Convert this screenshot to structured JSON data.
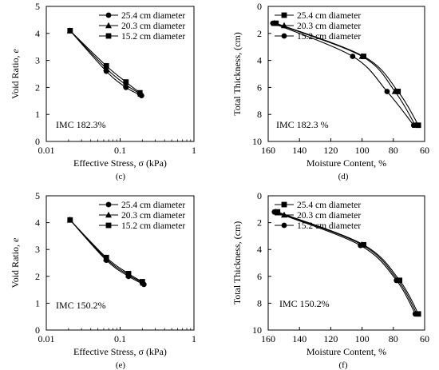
{
  "chart_data": [
    {
      "id": "c",
      "panel_label": "(c)",
      "type": "line",
      "xscale": "log",
      "xlim": [
        0.01,
        1
      ],
      "ylim": [
        0,
        5
      ],
      "xticks": [
        0.01,
        0.1,
        1
      ],
      "xtick_labels": [
        "0.01",
        "0.1",
        "1"
      ],
      "yticks": [
        0,
        1,
        2,
        3,
        4,
        5
      ],
      "ytick_labels": [
        "0",
        "1",
        "2",
        "3",
        "4",
        "5"
      ],
      "xlabel": "Effective Stress, σ (kPa)",
      "ylabel_main": "Void Ratio, ",
      "ylabel_italic": "e",
      "annotation": "IMC 182.3%",
      "annotation_position": "bottom-left",
      "legend_position": "top-right",
      "series": [
        {
          "name": "25.4 cm diameter",
          "marker": "circle",
          "x": [
            0.021,
            0.065,
            0.12,
            0.195
          ],
          "y": [
            4.1,
            2.6,
            2.0,
            1.7
          ]
        },
        {
          "name": "20.3 cm diameter",
          "marker": "triangle",
          "x": [
            0.021,
            0.065,
            0.12,
            0.19
          ],
          "y": [
            4.1,
            2.7,
            2.1,
            1.75
          ]
        },
        {
          "name": "15.2 cm diameter",
          "marker": "square",
          "x": [
            0.021,
            0.065,
            0.12,
            0.185
          ],
          "y": [
            4.1,
            2.8,
            2.2,
            1.8
          ]
        }
      ]
    },
    {
      "id": "d",
      "panel_label": "(d)",
      "type": "line",
      "xscale": "linear",
      "x_reversed": true,
      "y_reversed": true,
      "xlim": [
        160,
        60
      ],
      "ylim": [
        0,
        10
      ],
      "xticks": [
        160,
        140,
        120,
        100,
        80,
        60
      ],
      "xtick_labels": [
        "160",
        "140",
        "120",
        "100",
        "80",
        "60"
      ],
      "yticks": [
        0,
        2,
        4,
        6,
        8,
        10
      ],
      "ytick_labels": [
        "0",
        "2",
        "4",
        "6",
        "8",
        "10"
      ],
      "xlabel": "Moisture Content, %",
      "ylabel_main": "Total Thickness, (cm)",
      "ylabel_italic": "",
      "annotation": "IMC 182.3 %",
      "annotation_position": "bottom-left",
      "legend_position": "top-right",
      "series": [
        {
          "name": "25.4 cm diameter",
          "marker": "square",
          "x": [
            155,
            99,
            77,
            64
          ],
          "y": [
            1.25,
            3.7,
            6.3,
            8.8
          ]
        },
        {
          "name": "20.3 cm diameter",
          "marker": "triangle",
          "x": [
            156,
            100,
            79,
            66
          ],
          "y": [
            1.25,
            3.7,
            6.3,
            8.8
          ]
        },
        {
          "name": "15.2 cm diameter",
          "marker": "circle",
          "x": [
            157,
            106,
            84,
            67
          ],
          "y": [
            1.25,
            3.7,
            6.3,
            8.8
          ]
        }
      ]
    },
    {
      "id": "e",
      "panel_label": "(e)",
      "type": "line",
      "xscale": "log",
      "xlim": [
        0.01,
        1
      ],
      "ylim": [
        0,
        5
      ],
      "xticks": [
        0.01,
        0.1,
        1
      ],
      "xtick_labels": [
        "0.01",
        "0.1",
        "1"
      ],
      "yticks": [
        0,
        1,
        2,
        3,
        4,
        5
      ],
      "ytick_labels": [
        "0",
        "1",
        "2",
        "3",
        "4",
        "5"
      ],
      "xlabel": "Effective Stress, σ (kPa)",
      "ylabel_main": "Void Ratio, ",
      "ylabel_italic": "e",
      "annotation": "IMC 150.2%",
      "annotation_position": "bottom-left",
      "legend_position": "top-right",
      "series": [
        {
          "name": "25.4 cm diameter",
          "marker": "circle",
          "x": [
            0.021,
            0.065,
            0.13,
            0.21
          ],
          "y": [
            4.1,
            2.6,
            2.0,
            1.7
          ]
        },
        {
          "name": "20.3 cm diameter",
          "marker": "triangle",
          "x": [
            0.021,
            0.065,
            0.13,
            0.205
          ],
          "y": [
            4.1,
            2.65,
            2.05,
            1.75
          ]
        },
        {
          "name": "15.2 cm diameter",
          "marker": "square",
          "x": [
            0.021,
            0.065,
            0.13,
            0.2
          ],
          "y": [
            4.1,
            2.7,
            2.1,
            1.8
          ]
        }
      ]
    },
    {
      "id": "f",
      "panel_label": "(f)",
      "type": "line",
      "xscale": "linear",
      "x_reversed": true,
      "y_reversed": true,
      "xlim": [
        160,
        60
      ],
      "ylim": [
        0,
        10
      ],
      "xticks": [
        160,
        140,
        120,
        100,
        80,
        60
      ],
      "xtick_labels": [
        "160",
        "140",
        "120",
        "100",
        "80",
        "60"
      ],
      "yticks": [
        0,
        2,
        4,
        6,
        8,
        10
      ],
      "ytick_labels": [
        "0",
        "2",
        "4",
        "6",
        "8",
        "10"
      ],
      "xlabel": "Moisture Content, %",
      "ylabel_main": "Total Thickness, (cm)",
      "ylabel_italic": "",
      "annotation": "IMC 150.2%",
      "annotation_position": "bottom-left",
      "legend_position": "top-right",
      "series": [
        {
          "name": "25.4 cm diameter",
          "marker": "square",
          "x": [
            154,
            99,
            76,
            64
          ],
          "y": [
            1.2,
            3.65,
            6.3,
            8.8
          ]
        },
        {
          "name": "20.3 cm diameter",
          "marker": "triangle",
          "x": [
            155,
            100,
            77,
            65
          ],
          "y": [
            1.2,
            3.65,
            6.3,
            8.8
          ]
        },
        {
          "name": "15.2 cm diameter",
          "marker": "circle",
          "x": [
            156,
            101,
            78,
            66
          ],
          "y": [
            1.2,
            3.7,
            6.3,
            8.8
          ]
        }
      ]
    }
  ]
}
